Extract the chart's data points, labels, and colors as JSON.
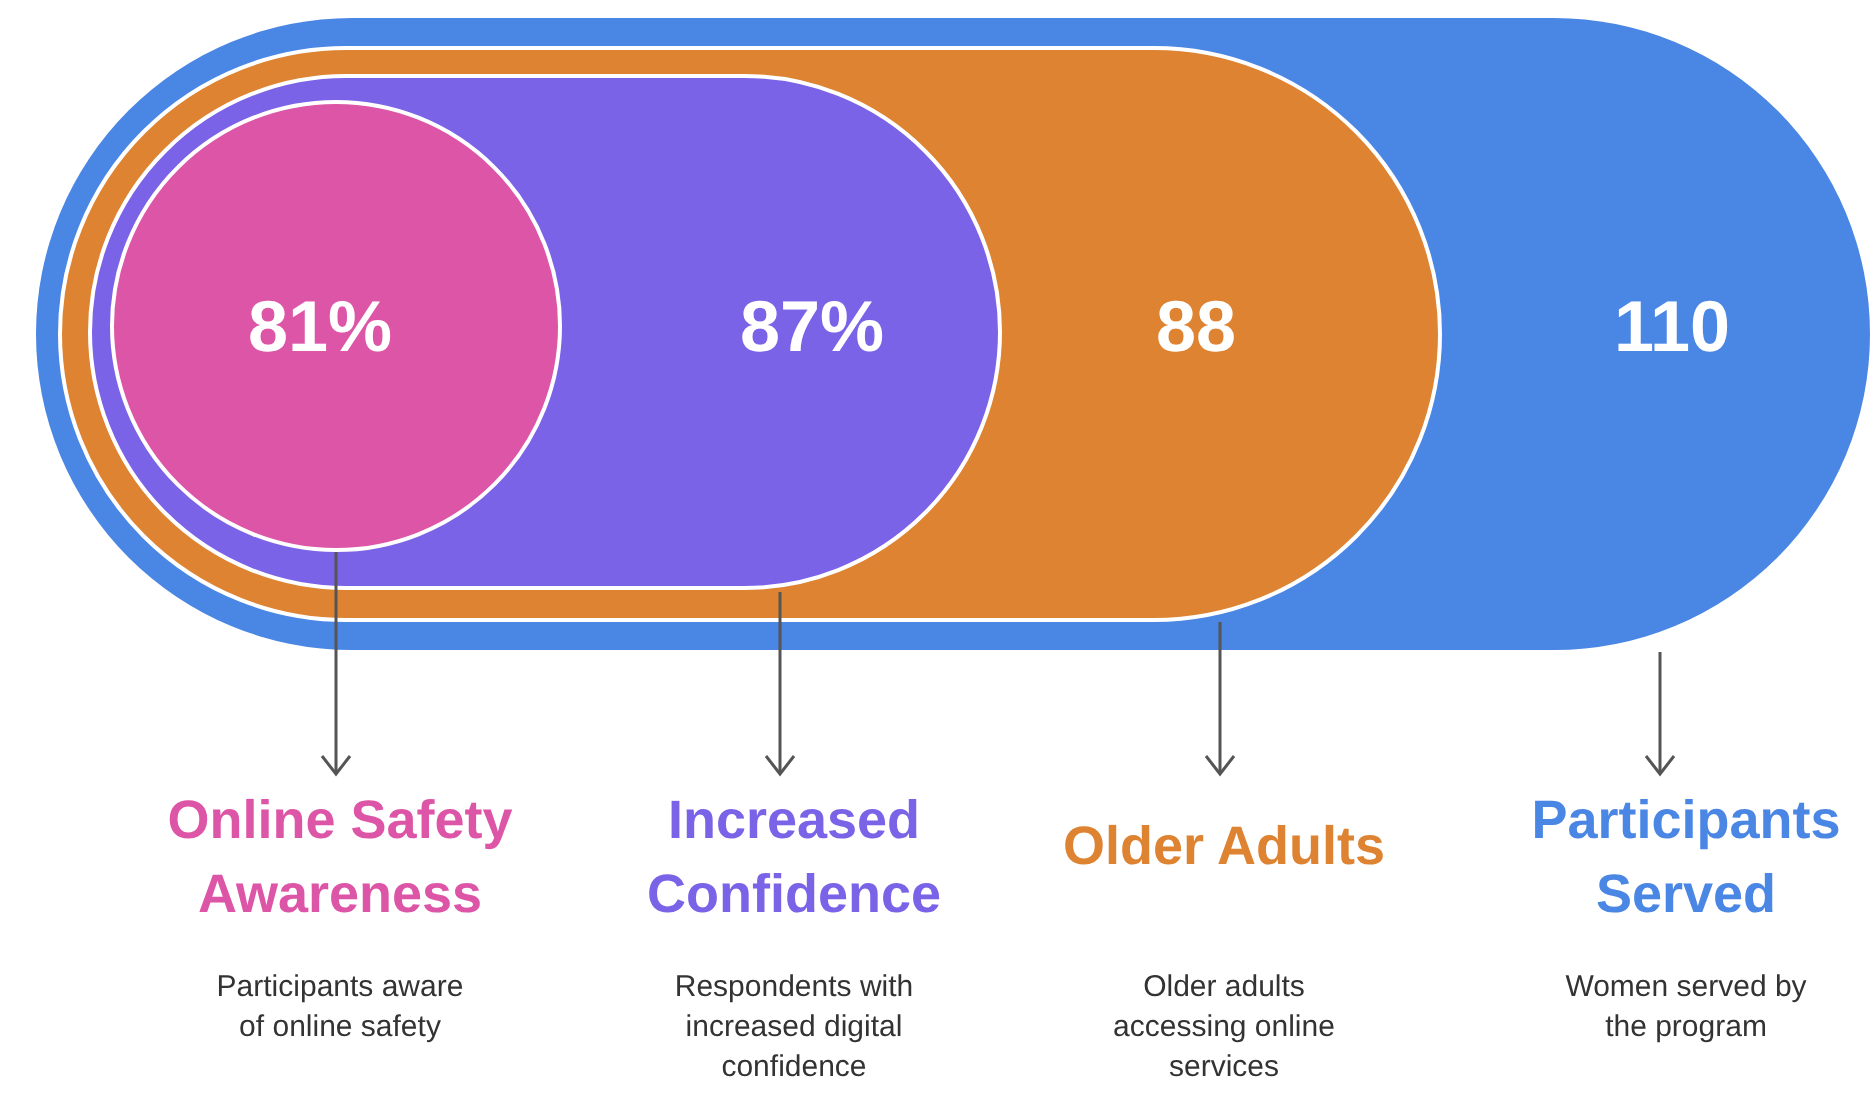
{
  "chart_data": {
    "type": "other",
    "categories": [
      "Online Safety Awareness",
      "Increased Confidence",
      "Older Adults",
      "Participants Served"
    ],
    "values": [
      81,
      87,
      88,
      110
    ],
    "value_labels": [
      "81%",
      "87%",
      "88",
      "110"
    ],
    "colors": [
      "#dd55a6",
      "#7b63e8",
      "#dd8331",
      "#4a86e4"
    ],
    "annotations": [
      "Participants aware of online safety",
      "Respondents with increased digital confidence",
      "Older adults accessing online services",
      "Women served by the program"
    ]
  }
}
